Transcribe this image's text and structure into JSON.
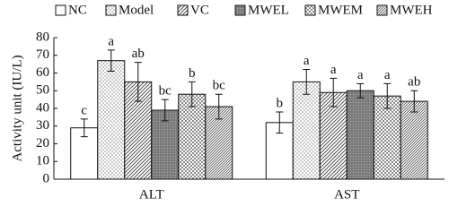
{
  "chart_data": {
    "type": "bar",
    "y_label": "Activity unit (IU/L)",
    "categories": [
      "ALT",
      "AST"
    ],
    "ylim": [
      0,
      80
    ],
    "yticks": [
      0,
      10,
      20,
      30,
      40,
      50,
      60,
      70,
      80
    ],
    "series": [
      {
        "name": "NC",
        "color": "#ffffff",
        "values": [
          29,
          32
        ],
        "errors": [
          5,
          6
        ],
        "labels": [
          "c",
          "b"
        ]
      },
      {
        "name": "Model",
        "color": "#f2f2f2",
        "values": [
          67,
          55
        ],
        "errors": [
          6,
          7
        ],
        "labels": [
          "a",
          "a"
        ]
      },
      {
        "name": "VC",
        "color": "#e8e8e8",
        "values": [
          55,
          49
        ],
        "errors": [
          11,
          8
        ],
        "labels": [
          "ab",
          "a"
        ]
      },
      {
        "name": "MWEL",
        "color": "#8c8c8c",
        "values": [
          39,
          50
        ],
        "errors": [
          6,
          4
        ],
        "labels": [
          "bc",
          "a"
        ]
      },
      {
        "name": "MWEM",
        "color": "#dcdcdc",
        "values": [
          48,
          47
        ],
        "errors": [
          7,
          7
        ],
        "labels": [
          "b",
          "a"
        ]
      },
      {
        "name": "MWEH",
        "color": "#d0d0d0",
        "values": [
          41,
          44
        ],
        "errors": [
          7,
          6
        ],
        "labels": [
          "bc",
          "ab"
        ]
      }
    ]
  }
}
